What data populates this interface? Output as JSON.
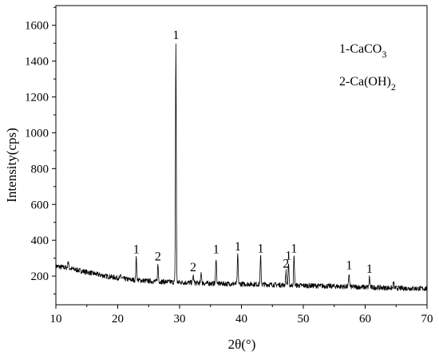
{
  "chart_data": {
    "type": "line",
    "title": "",
    "xlabel": "2θ(°)",
    "ylabel": "Intensity(cps)",
    "xlim": [
      10,
      70
    ],
    "ylim": [
      40,
      1710
    ],
    "x_ticks": [
      10,
      20,
      30,
      40,
      50,
      60,
      70
    ],
    "y_ticks": [
      200,
      400,
      600,
      800,
      1000,
      1200,
      1400,
      1600
    ],
    "grid": false,
    "legend_placement": "top-right",
    "legend": [
      {
        "main": "1-CaCO",
        "sub": "3"
      },
      {
        "main": "2-Ca(OH)",
        "sub": "2"
      }
    ],
    "line_color": "#000000",
    "baseline": [
      [
        10,
        255
      ],
      [
        12,
        245
      ],
      [
        14,
        230
      ],
      [
        16,
        215
      ],
      [
        18,
        200
      ],
      [
        20,
        190
      ],
      [
        22,
        180
      ],
      [
        24,
        175
      ],
      [
        26,
        170
      ],
      [
        28,
        168
      ],
      [
        30,
        165
      ],
      [
        32,
        163
      ],
      [
        34,
        160
      ],
      [
        36,
        158
      ],
      [
        38,
        157
      ],
      [
        40,
        156
      ],
      [
        42,
        155
      ],
      [
        44,
        153
      ],
      [
        46,
        151
      ],
      [
        48,
        149
      ],
      [
        50,
        147
      ],
      [
        52,
        146
      ],
      [
        54,
        144
      ],
      [
        56,
        142
      ],
      [
        58,
        140
      ],
      [
        60,
        138
      ],
      [
        62,
        136
      ],
      [
        64,
        134
      ],
      [
        66,
        132
      ],
      [
        68,
        131
      ],
      [
        70,
        130
      ]
    ],
    "noise_amplitude": 14,
    "peaks": [
      {
        "x": 12.0,
        "height": 285,
        "label": ""
      },
      {
        "x": 20.5,
        "height": 205,
        "label": ""
      },
      {
        "x": 23.0,
        "height": 305,
        "label": "1"
      },
      {
        "x": 26.5,
        "height": 265,
        "label": "2"
      },
      {
        "x": 29.4,
        "height": 1500,
        "label": "1"
      },
      {
        "x": 32.2,
        "height": 205,
        "label": "2"
      },
      {
        "x": 33.5,
        "height": 220,
        "label": ""
      },
      {
        "x": 35.9,
        "height": 305,
        "label": "1"
      },
      {
        "x": 39.4,
        "height": 320,
        "label": "1"
      },
      {
        "x": 43.1,
        "height": 310,
        "label": "1"
      },
      {
        "x": 47.2,
        "height": 225,
        "label": "2"
      },
      {
        "x": 47.6,
        "height": 270,
        "label": "1"
      },
      {
        "x": 48.5,
        "height": 310,
        "label": "1"
      },
      {
        "x": 57.4,
        "height": 215,
        "label": "1"
      },
      {
        "x": 60.7,
        "height": 195,
        "label": "1"
      },
      {
        "x": 64.6,
        "height": 165,
        "label": ""
      }
    ]
  }
}
